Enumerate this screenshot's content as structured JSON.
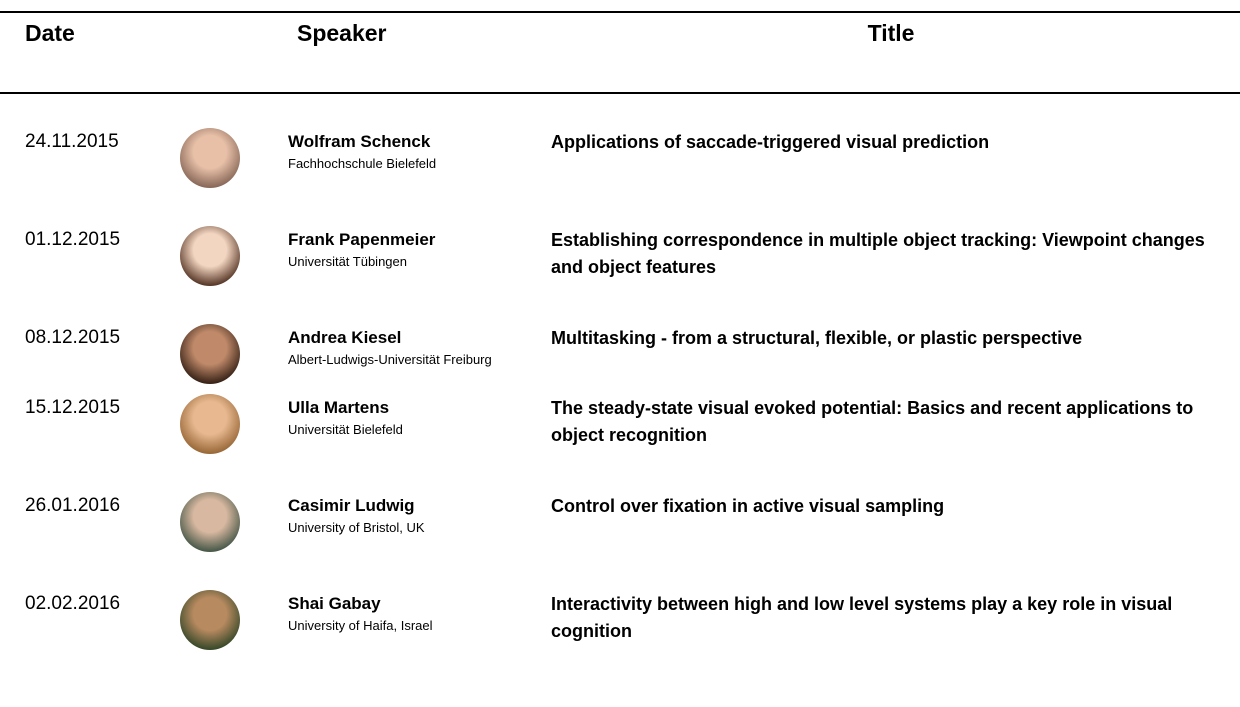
{
  "header": {
    "date": "Date",
    "speaker": "Speaker",
    "title": "Title"
  },
  "rows": [
    {
      "date": "24.11.2015",
      "name": "Wolfram Schenck",
      "affiliation": "Fachhochschule Bielefeld",
      "title": "Applications of saccade-triggered visual prediction"
    },
    {
      "date": "01.12.2015",
      "name": "Frank Papenmeier",
      "affiliation": "Universität Tübingen",
      "title": "Establishing correspondence in multiple object tracking: Viewpoint changes and object features"
    },
    {
      "date": "08.12.2015",
      "name": "Andrea Kiesel",
      "affiliation": "Albert-Ludwigs-Universität Freiburg",
      "title": "Multitasking - from a structural, flexible, or plastic perspective"
    },
    {
      "date": "15.12.2015",
      "name": "Ulla Martens",
      "affiliation": "Universität Bielefeld",
      "title": "The steady-state visual evoked potential: Basics and recent applications to object recognition"
    },
    {
      "date": "26.01.2016",
      "name": "Casimir Ludwig",
      "affiliation": "University of Bristol, UK",
      "title": "Control over fixation in active visual sampling"
    },
    {
      "date": "02.02.2016",
      "name": "Shai Gabay",
      "affiliation": "University of Haifa, Israel",
      "title": "Interactivity between high and low level systems play a key role in visual cognition"
    }
  ]
}
